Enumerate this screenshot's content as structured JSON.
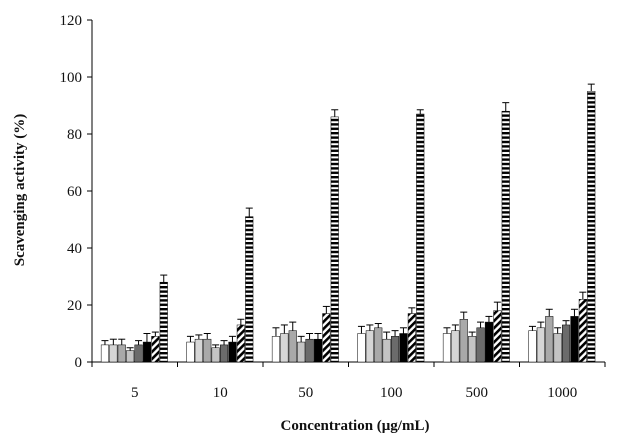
{
  "chart_data": {
    "type": "bar",
    "title": "",
    "xlabel": "Concentration (μg/mL)",
    "ylabel": "Scavenging activity (%)",
    "categories": [
      "5",
      "10",
      "50",
      "100",
      "500",
      "1000"
    ],
    "ylim": [
      0,
      120
    ],
    "yticks": [
      "0",
      "20",
      "40",
      "60",
      "80",
      "100",
      "120"
    ],
    "grid": false,
    "legend": "none",
    "series": [
      {
        "fill": "white",
        "values": [
          6,
          7,
          9,
          10,
          10,
          11
        ],
        "errors": [
          1.5,
          2,
          3,
          2.5,
          2,
          1.5
        ]
      },
      {
        "fill": "lightgray",
        "values": [
          6,
          8,
          10,
          11,
          11,
          12
        ],
        "errors": [
          2,
          1.5,
          3,
          2,
          2,
          2
        ]
      },
      {
        "fill": "gray",
        "values": [
          6,
          8,
          11,
          12,
          15,
          16
        ],
        "errors": [
          2,
          2,
          3,
          1.5,
          2.5,
          2.5
        ]
      },
      {
        "fill": "silver",
        "values": [
          4,
          5,
          7,
          8,
          9,
          10
        ],
        "errors": [
          1,
          1,
          2,
          2.5,
          1.5,
          2
        ]
      },
      {
        "fill": "dimgray",
        "values": [
          6,
          6,
          8,
          9,
          12,
          13
        ],
        "errors": [
          1.5,
          1.5,
          2,
          2,
          2,
          1.5
        ]
      },
      {
        "fill": "black",
        "values": [
          7,
          7,
          8,
          10,
          14,
          16
        ],
        "errors": [
          3,
          2,
          2,
          2,
          2,
          2.5
        ]
      },
      {
        "fill": "diagonal",
        "values": [
          9,
          13,
          17,
          17,
          18,
          22
        ],
        "errors": [
          1.5,
          2,
          2.5,
          2,
          3,
          2.5
        ]
      },
      {
        "fill": "horizontal",
        "values": [
          28,
          51,
          86,
          87,
          88,
          95
        ],
        "errors": [
          2.5,
          3,
          2.5,
          1.5,
          3,
          2.5
        ]
      }
    ]
  }
}
